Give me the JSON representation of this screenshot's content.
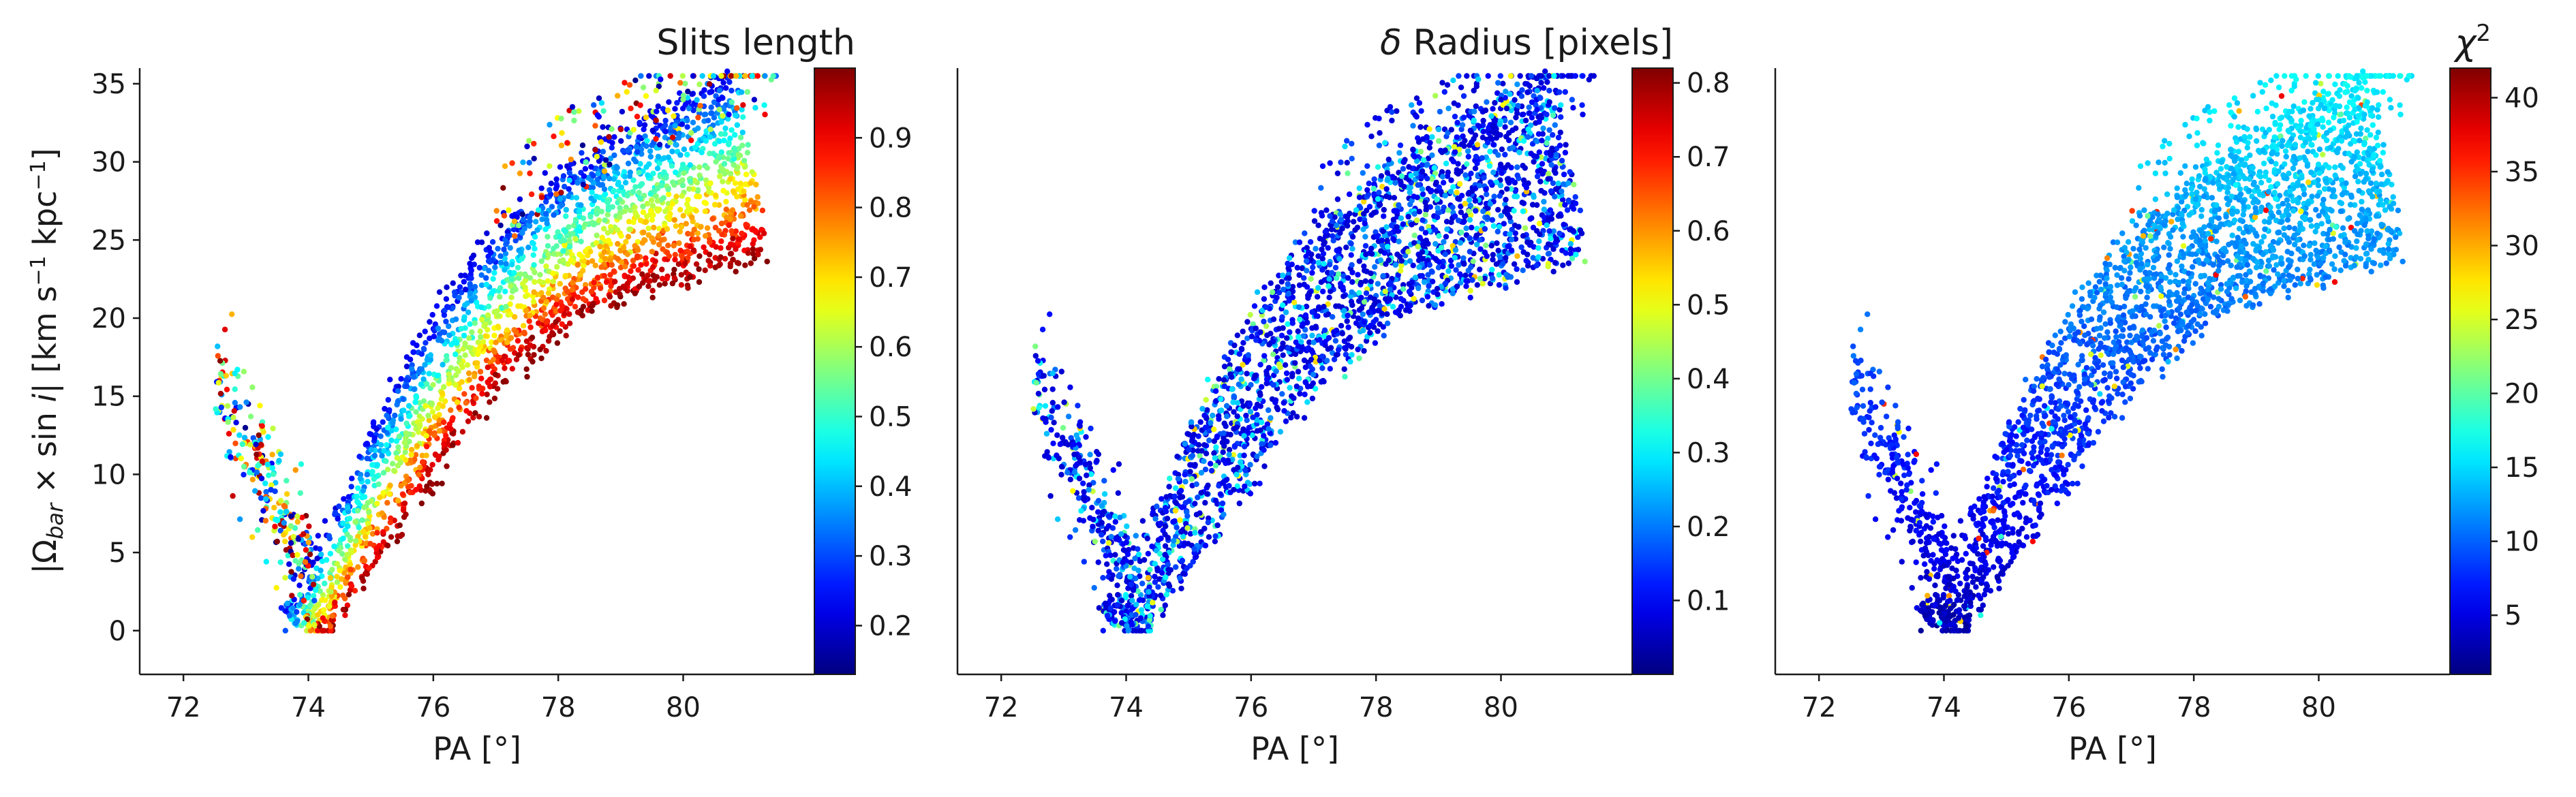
{
  "chart_data": [
    {
      "type": "scatter",
      "xlabel": "PA [°]",
      "ylabel": "|Ω_bar × sin i|  [km s⁻¹ kpc⁻¹]",
      "xlim": [
        71.3,
        82.1
      ],
      "ylim": [
        -2.8,
        36
      ],
      "xticks": [
        72,
        74,
        76,
        78,
        80
      ],
      "yticks": [
        0,
        5,
        10,
        15,
        20,
        25,
        30,
        35
      ],
      "colorbar": {
        "title": "Slits length",
        "colormap": "jet",
        "range": [
          0.13,
          1.0
        ],
        "ticks": [
          0.2,
          0.3,
          0.4,
          0.5,
          0.6,
          0.7,
          0.8,
          0.9
        ]
      },
      "color_pattern": "gradient across band"
    },
    {
      "type": "scatter",
      "xlabel": "PA [°]",
      "xlim": [
        71.3,
        82.1
      ],
      "ylim": [
        -2.8,
        36
      ],
      "xticks": [
        72,
        74,
        76,
        78,
        80
      ],
      "colorbar": {
        "title": "δ Radius [pixels]",
        "colormap": "jet",
        "range": [
          0.0,
          0.82
        ],
        "ticks": [
          0.1,
          0.2,
          0.3,
          0.4,
          0.5,
          0.6,
          0.7,
          0.8
        ]
      },
      "color_pattern": "mostly low with scatter"
    },
    {
      "type": "scatter",
      "xlabel": "PA [°]",
      "xlim": [
        71.3,
        82.1
      ],
      "ylim": [
        -2.8,
        36
      ],
      "xticks": [
        72,
        74,
        76,
        78,
        80
      ],
      "colorbar": {
        "title": "χ²",
        "colormap": "jet",
        "range": [
          1,
          42
        ],
        "ticks": [
          5,
          10,
          15,
          20,
          25,
          30,
          35,
          40
        ]
      },
      "color_pattern": "increasing with y"
    }
  ],
  "colors": {
    "axis": "#1a1a1a",
    "background": "#ffffff"
  }
}
